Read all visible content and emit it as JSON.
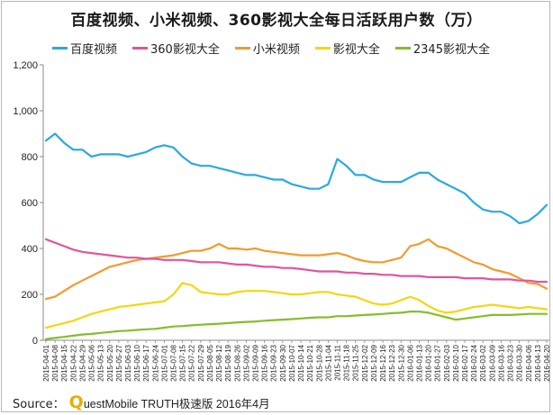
{
  "chart_data": {
    "type": "line",
    "title": "百度视频、小米视频、360影视大全每日活跃用户数（万）",
    "ylim": [
      0,
      1200
    ],
    "y_ticks": [
      "0",
      "200",
      "400",
      "600",
      "800",
      "1,000",
      "1,200"
    ],
    "grid": false,
    "legend_position": "top",
    "x_dates": [
      "2015-04-01",
      "2015-04-08",
      "2015-04-15",
      "2015-04-22",
      "2015-04-29",
      "2015-05-06",
      "2015-05-13",
      "2015-05-20",
      "2015-05-27",
      "2015-06-03",
      "2015-06-10",
      "2015-06-17",
      "2015-06-24",
      "2015-07-01",
      "2015-07-08",
      "2015-07-15",
      "2015-07-22",
      "2015-07-29",
      "2015-08-05",
      "2015-08-12",
      "2015-08-19",
      "2015-08-26",
      "2015-09-02",
      "2015-09-09",
      "2015-09-16",
      "2015-09-23",
      "2015-09-30",
      "2015-10-07",
      "2015-10-14",
      "2015-10-21",
      "2015-10-28",
      "2015-11-04",
      "2015-11-11",
      "2015-11-18",
      "2015-11-25",
      "2015-12-02",
      "2015-12-09",
      "2015-12-16",
      "2015-12-23",
      "2015-12-30",
      "2016-01-06",
      "2016-01-13",
      "2016-01-20",
      "2016-01-27",
      "2016-02-03",
      "2016-02-10",
      "2016-02-17",
      "2016-02-24",
      "2016-03-02",
      "2016-03-09",
      "2016-03-16",
      "2016-03-23",
      "2016-03-30",
      "2016-04-06",
      "2016-04-13",
      "2016-04-20"
    ],
    "x_tick_labels": [
      "2015-04-01",
      "2015-04-08",
      "2015-04-15",
      "2015-04-22",
      "2015-04-29",
      "2015-05-06",
      "2015-05-13",
      "2015-05-20",
      "2015-05-27",
      "2015-06-03",
      "2015-06-10",
      "2015-06-17",
      "2015-06-24",
      "2015-07-01",
      "2015-07-08",
      "2015-07-15",
      "2015-07-22",
      "2015-07-29",
      "2015-08-05",
      "2015-08-12",
      "2015-08-19",
      "2015-08-26",
      "2015-09-02",
      "2015-09-09",
      "2015-09-16",
      "2015-09-23",
      "2015-09-30",
      "2015-10-07",
      "2015-10-14",
      "2015-10-21",
      "2015-10-28",
      "2015-11-04",
      "2015-11-11",
      "2015-11-18",
      "2015-11-25",
      "2015-12-02",
      "2015-12-09",
      "2015-12-16",
      "2015-12-23",
      "2015-12-30",
      "2016-01-06",
      "2016-01-13",
      "2016-01-20",
      "2016-01-27",
      "2016-02-03",
      "2016-02-10",
      "2016-02-17",
      "2016-02-24",
      "2016-03-02",
      "2016-03-09",
      "2016-03-16",
      "2016-03-23",
      "2016-03-30",
      "2016-04-06",
      "2016-04-13",
      "2016-04-20"
    ],
    "series": [
      {
        "name": "百度视频",
        "color": "#29a9e1",
        "values": [
          870,
          900,
          860,
          830,
          830,
          800,
          810,
          810,
          810,
          800,
          810,
          820,
          840,
          850,
          840,
          800,
          770,
          760,
          760,
          750,
          740,
          730,
          720,
          720,
          710,
          700,
          700,
          680,
          670,
          660,
          660,
          680,
          790,
          760,
          720,
          720,
          700,
          690,
          690,
          690,
          710,
          730,
          730,
          700,
          680,
          660,
          640,
          600,
          570,
          560,
          560,
          540,
          510,
          520,
          550,
          590
        ]
      },
      {
        "name": "360影视大全",
        "color": "#e0559a",
        "values": [
          440,
          425,
          410,
          395,
          385,
          380,
          375,
          370,
          365,
          360,
          360,
          355,
          355,
          350,
          350,
          350,
          345,
          340,
          340,
          340,
          335,
          330,
          330,
          325,
          320,
          320,
          315,
          315,
          310,
          305,
          300,
          300,
          300,
          295,
          295,
          290,
          290,
          285,
          285,
          280,
          280,
          280,
          275,
          275,
          275,
          275,
          270,
          270,
          270,
          265,
          265,
          265,
          260,
          260,
          255,
          255
        ]
      },
      {
        "name": "小米视频",
        "color": "#f39a2e",
        "values": [
          180,
          190,
          215,
          240,
          260,
          280,
          300,
          320,
          330,
          340,
          350,
          355,
          360,
          365,
          370,
          380,
          390,
          390,
          400,
          420,
          400,
          400,
          395,
          400,
          390,
          385,
          380,
          375,
          370,
          370,
          370,
          375,
          380,
          370,
          355,
          345,
          340,
          340,
          350,
          360,
          410,
          420,
          440,
          410,
          400,
          380,
          360,
          340,
          330,
          310,
          300,
          290,
          270,
          250,
          245,
          225
        ]
      },
      {
        "name": "影视大全",
        "color": "#f4d60f",
        "values": [
          55,
          65,
          75,
          85,
          100,
          115,
          125,
          135,
          145,
          150,
          155,
          160,
          165,
          170,
          200,
          250,
          240,
          210,
          205,
          200,
          200,
          210,
          215,
          215,
          215,
          210,
          205,
          200,
          200,
          205,
          210,
          210,
          200,
          195,
          190,
          175,
          160,
          155,
          160,
          175,
          190,
          175,
          150,
          130,
          120,
          125,
          135,
          145,
          150,
          155,
          150,
          145,
          140,
          145,
          140,
          135
        ]
      },
      {
        "name": "2345影视大全",
        "color": "#86bd2b",
        "values": [
          5,
          10,
          15,
          20,
          25,
          28,
          32,
          36,
          40,
          42,
          45,
          48,
          50,
          55,
          60,
          62,
          65,
          68,
          70,
          72,
          75,
          78,
          80,
          82,
          85,
          88,
          90,
          92,
          95,
          98,
          100,
          100,
          105,
          105,
          108,
          110,
          112,
          115,
          118,
          120,
          125,
          125,
          120,
          110,
          100,
          90,
          95,
          100,
          105,
          110,
          110,
          110,
          112,
          115,
          115,
          115
        ]
      }
    ]
  },
  "source": {
    "label": "Source：",
    "logo_letter": "Q",
    "text": "uestMobile TRUTH极速版 2016年4月"
  }
}
